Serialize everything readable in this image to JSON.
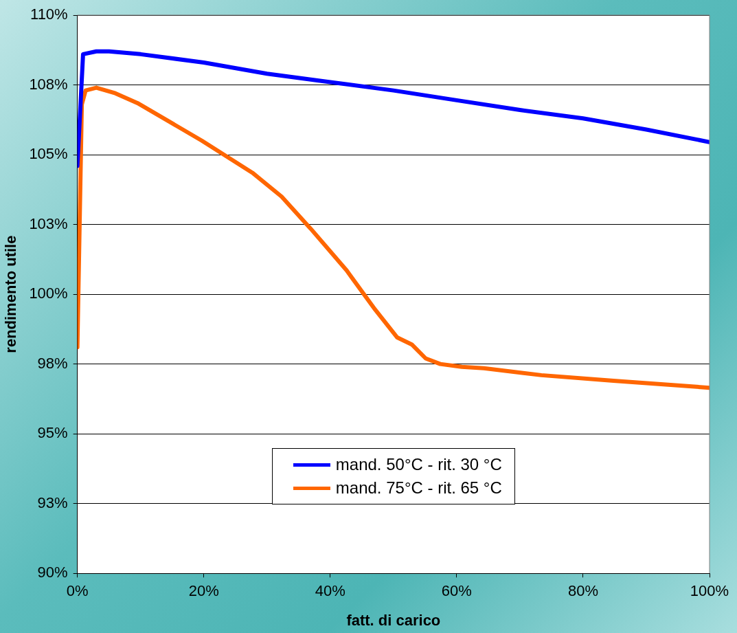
{
  "chart_data": {
    "type": "line",
    "xlabel": "fatt. di carico",
    "ylabel": "rendimento utile",
    "xlim": [
      0,
      100
    ],
    "xticks": [
      {
        "value": 0,
        "label": "0%"
      },
      {
        "value": 20,
        "label": "20%"
      },
      {
        "value": 40,
        "label": "40%"
      },
      {
        "value": 60,
        "label": "60%"
      },
      {
        "value": 80,
        "label": "80%"
      },
      {
        "value": 100,
        "label": "100%"
      }
    ],
    "ylim": [
      90,
      110
    ],
    "yticks": [
      {
        "value": 90,
        "label": "90%"
      },
      {
        "value": 92.5,
        "label": "93%"
      },
      {
        "value": 95,
        "label": "95%"
      },
      {
        "value": 97.5,
        "label": "98%"
      },
      {
        "value": 100,
        "label": "100%"
      },
      {
        "value": 102.5,
        "label": "103%"
      },
      {
        "value": 105,
        "label": "105%"
      },
      {
        "value": 107.5,
        "label": "108%"
      },
      {
        "value": 110,
        "label": "110%"
      }
    ],
    "grid": "y",
    "legend": "bottom",
    "marker": "none",
    "line_style": "solid",
    "series": [
      {
        "name": "mand. 50°C - rit. 30 °C",
        "color": "#0000ff",
        "x": [
          0,
          0.9,
          3,
          5,
          10,
          20,
          30,
          40,
          50,
          60,
          70,
          80,
          90,
          100
        ],
        "values": [
          104.6,
          108.6,
          108.7,
          108.7,
          108.6,
          108.3,
          107.9,
          107.6,
          107.3,
          106.95,
          106.6,
          106.3,
          105.9,
          105.45
        ]
      },
      {
        "name": "mand. 75°C - rit. 65 °C",
        "color": "#ff6600",
        "x": [
          0,
          0.7,
          1.3,
          3,
          6,
          9.5,
          12.9,
          19.7,
          27.7,
          32.3,
          36.9,
          42.6,
          47.1,
          50.6,
          52.9,
          55.1,
          57.4,
          60.8,
          64.3,
          73.4,
          84.8,
          100
        ],
        "values": [
          98.1,
          106.8,
          107.3,
          107.4,
          107.2,
          106.85,
          106.4,
          105.5,
          104.35,
          103.5,
          102.35,
          100.85,
          99.45,
          98.45,
          98.2,
          97.7,
          97.5,
          97.4,
          97.35,
          97.1,
          96.9,
          96.65
        ]
      }
    ]
  }
}
